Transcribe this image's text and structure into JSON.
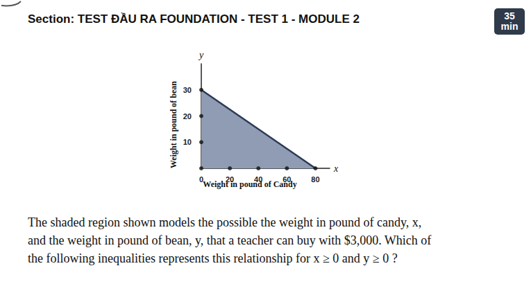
{
  "header": {
    "section": "Section: TEST ĐẦU RA FOUNDATION - TEST 1 - MODULE 2",
    "timer": [
      "35",
      "min"
    ]
  },
  "chart_data": {
    "type": "area",
    "x_label": "Weight in pound of Candy",
    "y_label": "Weight in pound of bean",
    "x_axis_name": "x",
    "y_axis_name": "y",
    "x": [
      0,
      80
    ],
    "values": [
      30,
      0
    ],
    "color": "#8f9cb3",
    "marker": "none",
    "xlim": [
      0,
      90
    ],
    "ylim": [
      0,
      40
    ],
    "xticks": [
      0,
      20,
      40,
      60,
      80
    ],
    "yticks": [
      10,
      20,
      30
    ],
    "grid": false
  },
  "question": {
    "lines": [
      "The shaded region shown models the possible  the weight in pound of candy, x,",
      "and the weight in pound of bean, y, that a teacher can buy with $3,000. Which of",
      "the following inequalities represents this relationship for x ≥ 0 and y ≥ 0 ?"
    ]
  }
}
